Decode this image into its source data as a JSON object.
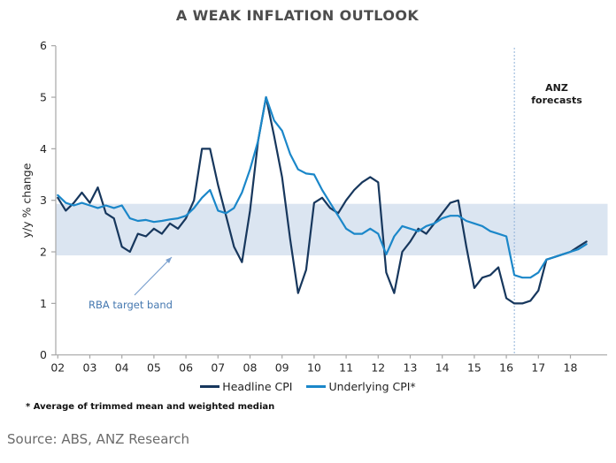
{
  "chart_data": {
    "type": "line",
    "title": "A WEAK INFLATION OUTLOOK",
    "ylabel": "y/y % change",
    "ylim": [
      0,
      6
    ],
    "y_ticks": [
      "0",
      "1",
      "2",
      "3",
      "4",
      "5",
      "6"
    ],
    "x_tick_labels": [
      "02",
      "03",
      "04",
      "05",
      "06",
      "07",
      "08",
      "09",
      "10",
      "11",
      "12",
      "13",
      "14",
      "15",
      "16",
      "17",
      "18"
    ],
    "x_start_year": 2002,
    "x_end_year": 2018,
    "grid": false,
    "legend_position": "bottom",
    "band": {
      "label": "RBA target band",
      "from": 2,
      "to": 3,
      "color": "#dbe5f1"
    },
    "forecast": {
      "label": "ANZ\nforecasts",
      "x": 2016.25,
      "line_color": "#8fb2d9"
    },
    "series": [
      {
        "name": "Headline CPI",
        "color": "#17375d",
        "x_start": 2002.0,
        "x_step": 0.25,
        "values": [
          3.05,
          2.8,
          2.95,
          3.15,
          2.95,
          3.25,
          2.75,
          2.65,
          2.1,
          2.0,
          2.35,
          2.3,
          2.45,
          2.35,
          2.55,
          2.45,
          2.65,
          3.0,
          4.0,
          4.0,
          3.3,
          2.7,
          2.1,
          1.8,
          2.8,
          4.15,
          5.0,
          4.25,
          3.45,
          2.25,
          1.2,
          1.65,
          2.95,
          3.05,
          2.85,
          2.75,
          3.0,
          3.2,
          3.35,
          3.45,
          3.35,
          1.6,
          1.2,
          2.0,
          2.2,
          2.45,
          2.35,
          2.55,
          2.75,
          2.95,
          3.0,
          2.1,
          1.3,
          1.5,
          1.55,
          1.7,
          1.1,
          1.0,
          1.0,
          1.05,
          1.25,
          1.85,
          1.9,
          1.95,
          2.0,
          2.1,
          2.2
        ]
      },
      {
        "name": "Underlying CPI*",
        "color": "#1b87c9",
        "x_start": 2002.0,
        "x_step": 0.25,
        "values": [
          3.1,
          2.95,
          2.9,
          2.95,
          2.9,
          2.85,
          2.9,
          2.85,
          2.9,
          2.65,
          2.6,
          2.62,
          2.58,
          2.6,
          2.63,
          2.65,
          2.7,
          2.85,
          3.05,
          3.2,
          2.8,
          2.75,
          2.85,
          3.15,
          3.6,
          4.15,
          5.0,
          4.55,
          4.35,
          3.9,
          3.6,
          3.52,
          3.5,
          3.2,
          2.95,
          2.7,
          2.45,
          2.35,
          2.35,
          2.45,
          2.35,
          1.95,
          2.3,
          2.5,
          2.45,
          2.4,
          2.5,
          2.55,
          2.65,
          2.7,
          2.7,
          2.6,
          2.55,
          2.5,
          2.4,
          2.35,
          2.3,
          1.55,
          1.5,
          1.5,
          1.6,
          1.85,
          1.9,
          1.95,
          2.0,
          2.05,
          2.15
        ]
      }
    ]
  },
  "legend": {
    "items": [
      {
        "label": "Headline CPI",
        "color": "#17375d"
      },
      {
        "label": "Underlying CPI*",
        "color": "#1b87c9"
      }
    ]
  },
  "footnote": {
    "text": "* Average of trimmed mean and weighted median"
  },
  "source": {
    "text": "Source: ABS, ANZ Research"
  },
  "style": {
    "axis_color": "#a6a6a6",
    "tick_label_color": "#262626",
    "annotation_arrow_color": "#7aa0cf"
  }
}
